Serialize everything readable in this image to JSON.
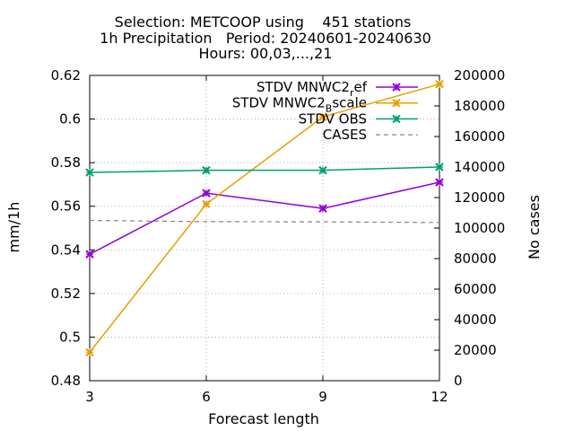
{
  "chart_data": {
    "type": "line",
    "title_lines": [
      "Selection: METCOOP using    451 stations",
      "1h Precipitation   Period: 20240601-20240630",
      "Hours: 00,03,...,21"
    ],
    "xlabel": "Forecast length",
    "ylabel": "mm/1h",
    "y2label": "No cases",
    "x": [
      3,
      6,
      9,
      12
    ],
    "x_ticks": [
      "3",
      "6",
      "9",
      "12"
    ],
    "xlim": [
      3,
      12
    ],
    "ylim": [
      0.48,
      0.62
    ],
    "y_ticks": [
      "0.48",
      "0.5",
      "0.52",
      "0.54",
      "0.56",
      "0.58",
      "0.6",
      "0.62"
    ],
    "y2lim": [
      0,
      200000
    ],
    "y2_ticks": [
      "0",
      "20000",
      "40000",
      "60000",
      "80000",
      "100000",
      "120000",
      "140000",
      "160000",
      "180000",
      "200000"
    ],
    "grid": true,
    "legend_position": "top-right",
    "series": [
      {
        "name": "STDV MNWC2_ref",
        "name_main": "STDV MNWC2",
        "name_sub": "r",
        "name_rest": "ef",
        "axis": "left",
        "color": "#9400d3",
        "style": "solid",
        "marker": "x",
        "values": [
          0.538,
          0.566,
          0.559,
          0.571
        ]
      },
      {
        "name": "STDV MNWC2_Bscale",
        "name_main": "STDV MNWC2",
        "name_sub": "B",
        "name_rest": "scale",
        "axis": "left",
        "color": "#e69f00",
        "style": "solid",
        "marker": "x",
        "values": [
          0.493,
          0.561,
          0.601,
          0.616
        ]
      },
      {
        "name": "STDV OBS",
        "name_main": "STDV OBS",
        "name_sub": "",
        "name_rest": "",
        "axis": "left",
        "color": "#009e73",
        "style": "solid",
        "marker": "x",
        "values": [
          0.5755,
          0.5765,
          0.5765,
          0.578
        ]
      },
      {
        "name": "CASES",
        "name_main": "CASES",
        "name_sub": "",
        "name_rest": "",
        "axis": "right",
        "color": "#888888",
        "style": "dashed",
        "marker": "none",
        "values": [
          105000,
          104200,
          104100,
          103600
        ]
      }
    ]
  }
}
